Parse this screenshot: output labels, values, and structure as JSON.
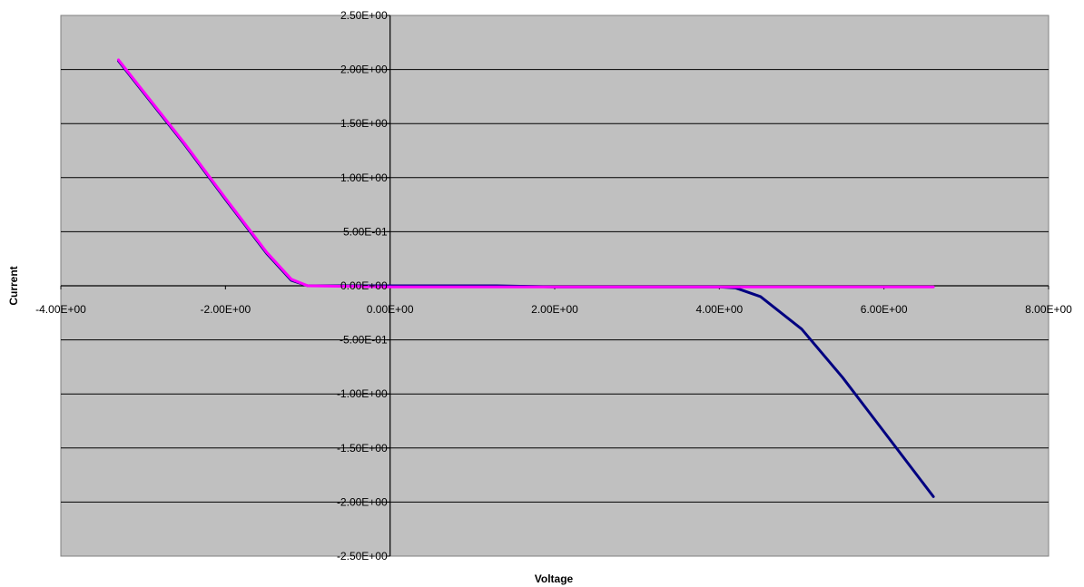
{
  "chart_data": {
    "type": "scatter",
    "title": "",
    "xlabel": "Voltage",
    "ylabel": "Current",
    "xlim": [
      -4,
      8
    ],
    "ylim": [
      -2.5,
      2.5
    ],
    "x_ticks": [
      -4,
      -2,
      0,
      2,
      4,
      6,
      8
    ],
    "y_ticks": [
      2.5,
      2,
      1.5,
      1,
      0.5,
      0,
      -0.5,
      -1,
      -1.5,
      -2,
      -2.5
    ],
    "x_tick_labels": [
      "-4.00E+00",
      "-2.00E+00",
      "0.00E+00",
      "2.00E+00",
      "4.00E+00",
      "6.00E+00",
      "8.00E+00"
    ],
    "y_tick_labels": [
      "2.50E+00",
      "2.00E+00",
      "1.50E+00",
      "1.00E+00",
      "5.00E-01",
      "0.00E+00",
      "-5.00E-01",
      "-1.00E+00",
      "-1.50E+00",
      "-2.00E+00",
      "-2.50E+00"
    ],
    "grid": true,
    "plot_background": "#c0c0c0",
    "series": [
      {
        "color": "#000080",
        "points": [
          [
            -3.3,
            2.08
          ],
          [
            -3.0,
            1.79
          ],
          [
            -2.5,
            1.31
          ],
          [
            -2.0,
            0.8
          ],
          [
            -1.5,
            0.3
          ],
          [
            -1.2,
            0.05
          ],
          [
            -1.0,
            0.0
          ],
          [
            0.0,
            0.0
          ],
          [
            1.3,
            0.0
          ],
          [
            2.0,
            -0.01
          ],
          [
            3.0,
            -0.01
          ],
          [
            4.0,
            -0.01
          ],
          [
            4.2,
            -0.02
          ],
          [
            4.5,
            -0.1
          ],
          [
            5.0,
            -0.4
          ],
          [
            5.5,
            -0.85
          ],
          [
            6.0,
            -1.35
          ],
          [
            6.6,
            -1.95
          ]
        ]
      },
      {
        "color": "#ff00ff",
        "points": [
          [
            -3.3,
            2.09
          ],
          [
            -3.0,
            1.8
          ],
          [
            -2.5,
            1.32
          ],
          [
            -2.0,
            0.81
          ],
          [
            -1.5,
            0.31
          ],
          [
            -1.2,
            0.06
          ],
          [
            -1.0,
            0.0
          ],
          [
            0.0,
            -0.01
          ],
          [
            2.0,
            -0.01
          ],
          [
            4.0,
            -0.01
          ],
          [
            5.0,
            -0.01
          ],
          [
            6.0,
            -0.01
          ],
          [
            6.6,
            -0.01
          ]
        ]
      }
    ]
  }
}
